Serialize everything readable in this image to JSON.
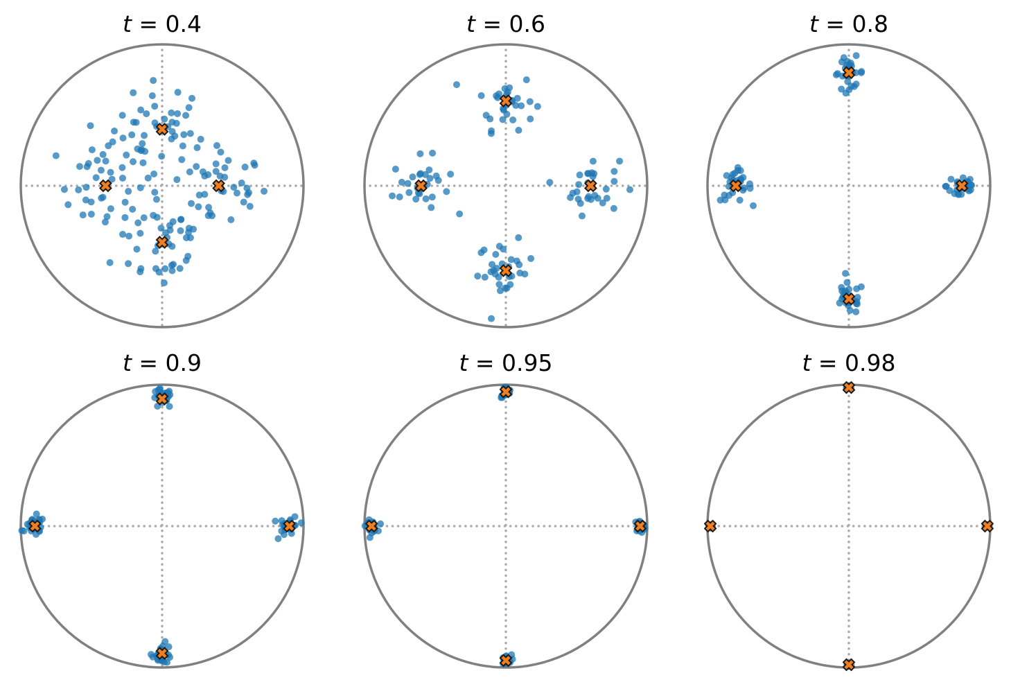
{
  "colors": {
    "circle": "#808080",
    "axes_dotted": "#aaaaaa",
    "points": "#1f77b4",
    "centroid_fill": "#f17f1f",
    "centroid_edge": "#1a1a1a",
    "background": "#ffffff"
  },
  "chart_data": [
    {
      "type": "scatter",
      "title": {
        "var": "t",
        "op": " = ",
        "value": "0.4"
      },
      "xlim": [
        -1,
        1
      ],
      "ylim": [
        -1,
        1
      ],
      "grid": false,
      "centroids": [
        [
          0.0,
          0.4
        ],
        [
          -0.4,
          0.0
        ],
        [
          0.4,
          0.0
        ],
        [
          0.0,
          -0.4
        ]
      ],
      "spread": 0.17,
      "points_per_cluster": 40,
      "cluster_points": []
    },
    {
      "type": "scatter",
      "title": {
        "var": "t",
        "op": " = ",
        "value": "0.6"
      },
      "xlim": [
        -1,
        1
      ],
      "ylim": [
        -1,
        1
      ],
      "grid": false,
      "centroids": [
        [
          0.0,
          0.6
        ],
        [
          -0.6,
          0.0
        ],
        [
          0.6,
          0.0
        ],
        [
          0.0,
          -0.6
        ]
      ],
      "spread": 0.1,
      "points_per_cluster": 30,
      "cluster_points": []
    },
    {
      "type": "scatter",
      "title": {
        "var": "t",
        "op": " = ",
        "value": "0.8"
      },
      "xlim": [
        -1,
        1
      ],
      "ylim": [
        -1,
        1
      ],
      "grid": false,
      "centroids": [
        [
          0.0,
          0.8
        ],
        [
          -0.8,
          0.0
        ],
        [
          0.8,
          0.0
        ],
        [
          0.0,
          -0.8
        ]
      ],
      "spread": 0.055,
      "points_per_cluster": 28,
      "cluster_points": []
    },
    {
      "type": "scatter",
      "title": {
        "var": "t",
        "op": " = ",
        "value": "0.9"
      },
      "xlim": [
        -1,
        1
      ],
      "ylim": [
        -1,
        1
      ],
      "grid": false,
      "centroids": [
        [
          0.0,
          0.9
        ],
        [
          -0.9,
          0.0
        ],
        [
          0.9,
          0.0
        ],
        [
          0.0,
          -0.9
        ]
      ],
      "spread": 0.035,
      "points_per_cluster": 26,
      "cluster_points": []
    },
    {
      "type": "scatter",
      "title": {
        "var": "t",
        "op": " = ",
        "value": "0.95"
      },
      "xlim": [
        -1,
        1
      ],
      "ylim": [
        -1,
        1
      ],
      "grid": false,
      "centroids": [
        [
          0.0,
          0.95
        ],
        [
          -0.95,
          0.0
        ],
        [
          0.95,
          0.0
        ],
        [
          0.0,
          -0.95
        ]
      ],
      "spread": 0.02,
      "points_per_cluster": 22,
      "cluster_points": []
    },
    {
      "type": "scatter",
      "title": {
        "var": "t",
        "op": " = ",
        "value": "0.98"
      },
      "xlim": [
        -1,
        1
      ],
      "ylim": [
        -1,
        1
      ],
      "grid": false,
      "centroids": [
        [
          0.0,
          0.98
        ],
        [
          -0.98,
          0.0
        ],
        [
          0.98,
          0.0
        ],
        [
          0.0,
          -0.98
        ]
      ],
      "spread": 0.008,
      "points_per_cluster": 16,
      "cluster_points": []
    }
  ]
}
